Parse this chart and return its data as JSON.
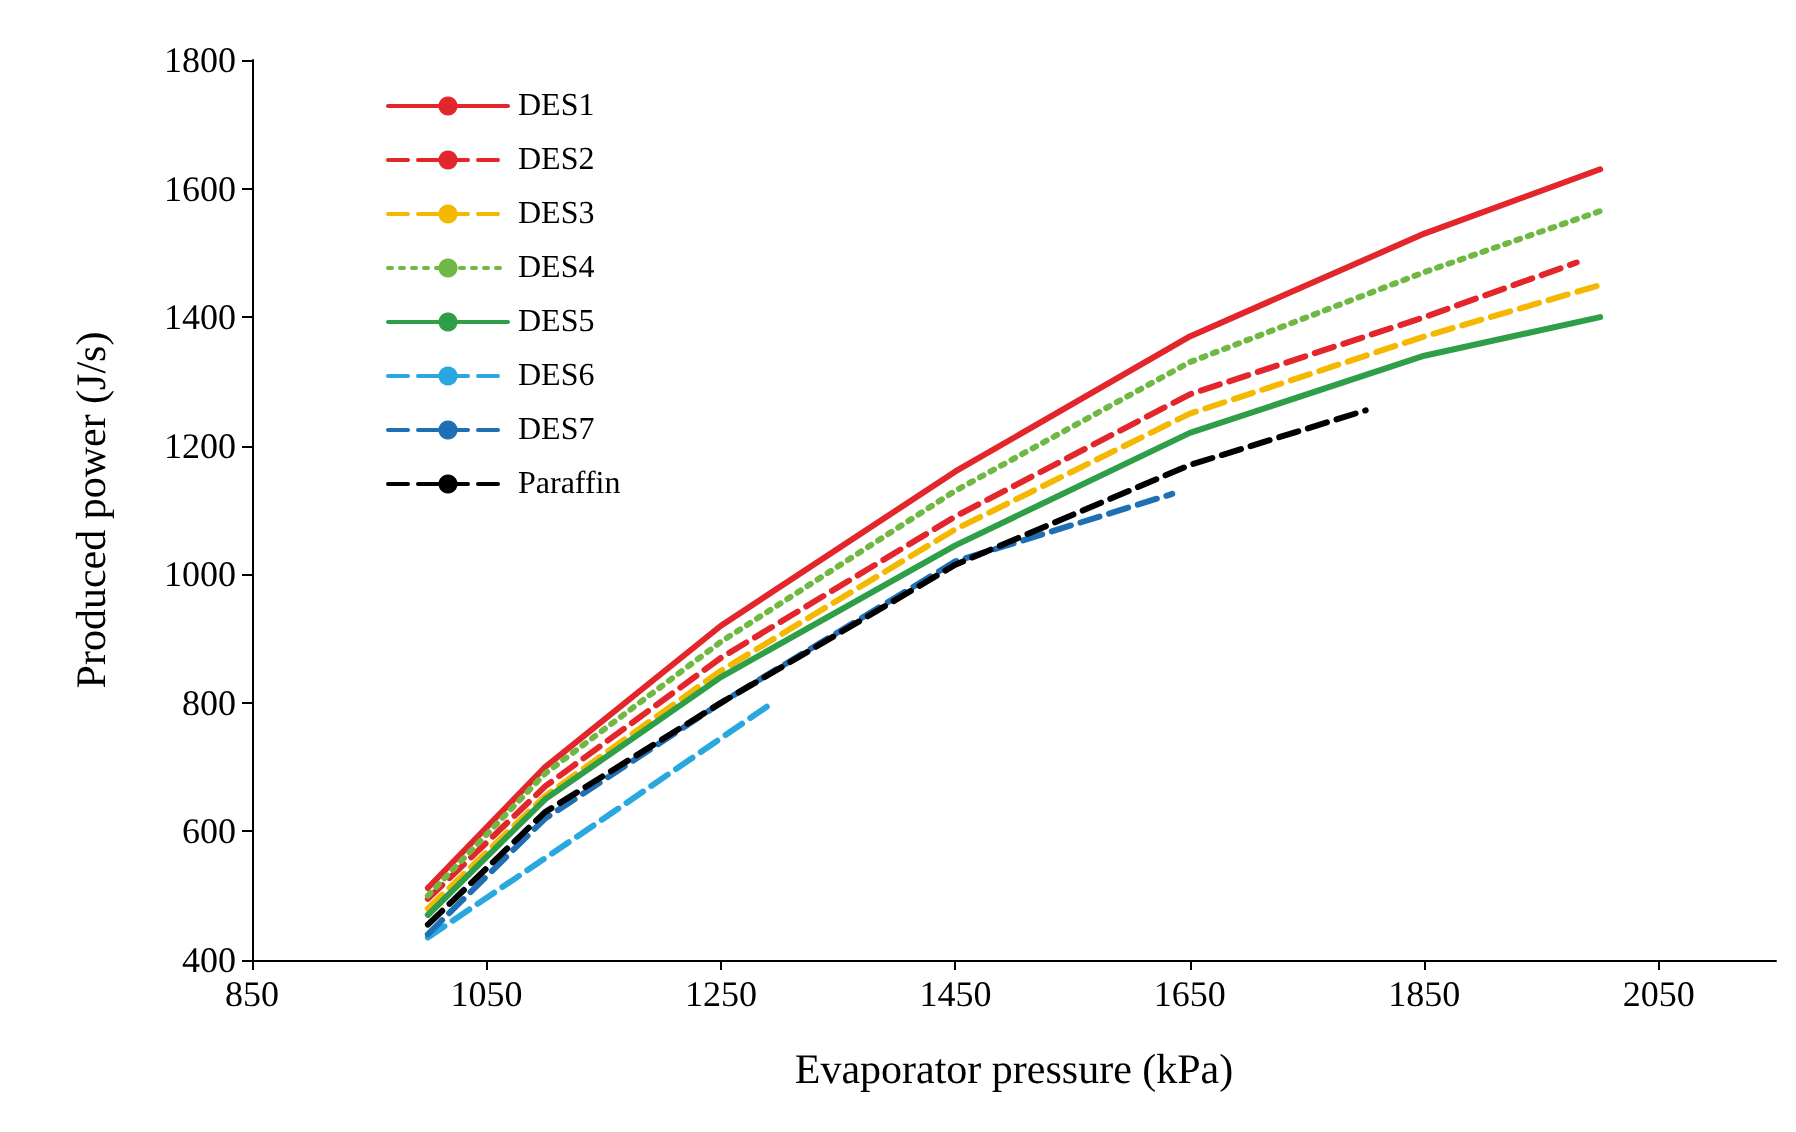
{
  "chart_data": {
    "type": "line",
    "xlabel": "Evaporator pressure (kPa)",
    "ylabel": "Produced power (J/s)",
    "xlim": [
      850,
      2150
    ],
    "xticks": [
      850,
      1050,
      1250,
      1450,
      1650,
      1850,
      2050
    ],
    "ylim": [
      400,
      1800
    ],
    "yticks": [
      400,
      600,
      800,
      1000,
      1200,
      1400,
      1600,
      1800
    ],
    "grid": false,
    "legend": "top left",
    "marker": "none",
    "series": [
      {
        "name": "DES1",
        "color": "#e3262b",
        "line_style": "solid",
        "x": [
          1000,
          1100,
          1250,
          1450,
          1650,
          1850,
          2000
        ],
        "values": [
          512,
          700,
          920,
          1160,
          1370,
          1530,
          1630
        ]
      },
      {
        "name": "DES2",
        "color": "#e3262b",
        "line_style": "dashed",
        "x": [
          1000,
          1100,
          1250,
          1450,
          1650,
          1850,
          1980
        ],
        "values": [
          495,
          670,
          870,
          1090,
          1280,
          1400,
          1485
        ]
      },
      {
        "name": "DES3",
        "color": "#f5b800",
        "line_style": "dashed",
        "x": [
          1000,
          1100,
          1250,
          1450,
          1650,
          1850,
          2000
        ],
        "values": [
          480,
          655,
          850,
          1070,
          1250,
          1370,
          1450
        ]
      },
      {
        "name": "DES4",
        "color": "#70b844",
        "line_style": "dotted",
        "x": [
          1000,
          1100,
          1250,
          1450,
          1650,
          1850,
          2000
        ],
        "values": [
          500,
          690,
          895,
          1130,
          1330,
          1470,
          1565
        ]
      },
      {
        "name": "DES5",
        "color": "#2e9e48",
        "line_style": "solid",
        "x": [
          1000,
          1100,
          1250,
          1450,
          1650,
          1850,
          2000
        ],
        "values": [
          470,
          650,
          840,
          1045,
          1220,
          1340,
          1400
        ]
      },
      {
        "name": "DES6",
        "color": "#29a8e0",
        "line_style": "dashed",
        "x": [
          1000,
          1150,
          1290
        ],
        "values": [
          435,
          620,
          795
        ]
      },
      {
        "name": "DES7",
        "color": "#1f6fb4",
        "line_style": "dashed",
        "x": [
          1000,
          1100,
          1250,
          1450,
          1635
        ],
        "values": [
          440,
          620,
          800,
          1020,
          1125
        ]
      },
      {
        "name": "Paraffin",
        "color": "#000000",
        "line_style": "dashed",
        "x": [
          1000,
          1100,
          1250,
          1450,
          1650,
          1800
        ],
        "values": [
          455,
          630,
          800,
          1015,
          1170,
          1255
        ]
      }
    ]
  }
}
